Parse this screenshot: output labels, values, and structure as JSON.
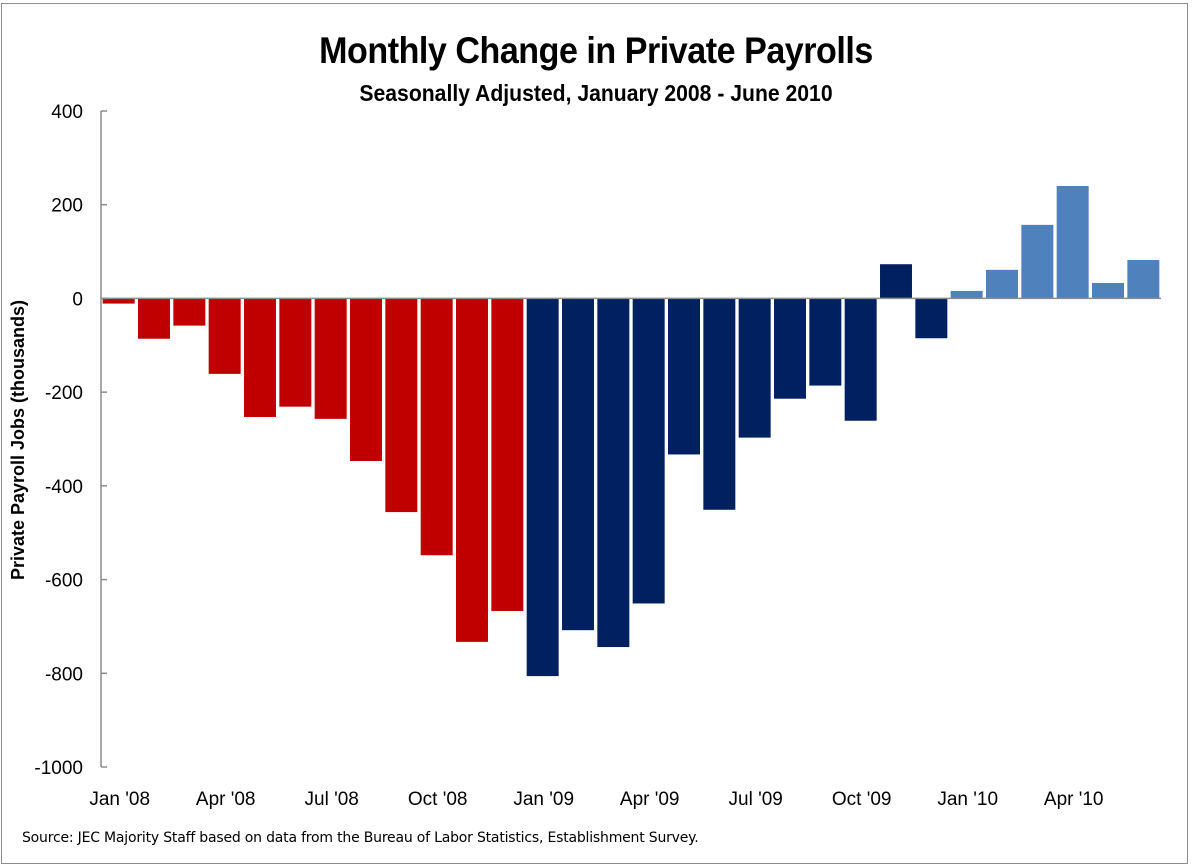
{
  "chart_data": {
    "type": "bar",
    "title": "Monthly Change in Private Payrolls",
    "subtitle": "Seasonally Adjusted, January 2008 - June 2010",
    "xlabel": "",
    "ylabel": "Private Payroll Jobs (thousands)",
    "ylim": [
      -1000,
      400
    ],
    "yticks": [
      400,
      200,
      0,
      -200,
      -400,
      -600,
      -800,
      -1000
    ],
    "ytick_labels": [
      "400",
      "200",
      "0",
      "-200",
      "-400",
      "-600",
      "-800",
      "-1000"
    ],
    "grid": false,
    "legend": "none",
    "categories": [
      "Jan 2008",
      "Feb 2008",
      "Mar 2008",
      "Apr 2008",
      "May 2008",
      "Jun 2008",
      "Jul 2008",
      "Aug 2008",
      "Sep 2008",
      "Oct 2008",
      "Nov 2008",
      "Dec 2008",
      "Jan 2009",
      "Feb 2009",
      "Mar 2009",
      "Apr 2009",
      "May 2009",
      "Jun 2009",
      "Jul 2009",
      "Aug 2009",
      "Sep 2009",
      "Oct 2009",
      "Nov 2009",
      "Dec 2009",
      "Jan 2010",
      "Feb 2010",
      "Mar 2010",
      "Apr 2010",
      "May 2010",
      "Jun 2010"
    ],
    "xtick_labels": [
      {
        "index": 0,
        "label": "Jan '08"
      },
      {
        "index": 3,
        "label": "Apr '08"
      },
      {
        "index": 6,
        "label": "Jul '08"
      },
      {
        "index": 9,
        "label": "Oct '08"
      },
      {
        "index": 12,
        "label": "Jan '09"
      },
      {
        "index": 15,
        "label": "Apr '09"
      },
      {
        "index": 18,
        "label": "Jul '09"
      },
      {
        "index": 21,
        "label": "Oct '09"
      },
      {
        "index": 24,
        "label": "Jan '10"
      },
      {
        "index": 27,
        "label": "Apr '10"
      }
    ],
    "values": [
      -11,
      -86,
      -58,
      -161,
      -253,
      -231,
      -257,
      -347,
      -456,
      -548,
      -733,
      -667,
      -806,
      -708,
      -744,
      -651,
      -333,
      -451,
      -297,
      -214,
      -186,
      -261,
      73,
      -85,
      16,
      61,
      157,
      240,
      33,
      82
    ],
    "bar_color_groups": [
      {
        "from": 0,
        "to": 12,
        "color": "#C00000"
      },
      {
        "from": 12,
        "to": 24,
        "color": "#002060"
      },
      {
        "from": 24,
        "to": 30,
        "color": "#4F81BD"
      }
    ],
    "source": "Source: JEC Majority Staff based on data from the Bureau of Labor Statistics,  Establishment  Survey."
  },
  "colors": {
    "axis": "#8c8c8c",
    "text": "#000000"
  }
}
